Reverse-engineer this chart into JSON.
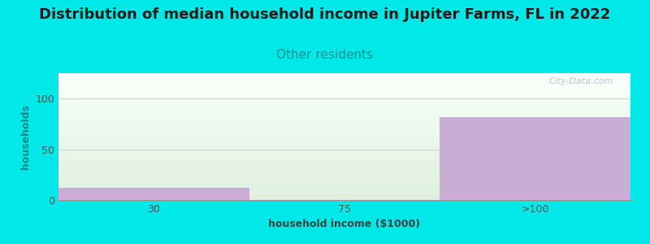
{
  "title": "Distribution of median household income in Jupiter Farms, FL in 2022",
  "subtitle": "Other residents",
  "xlabel": "household income ($1000)",
  "ylabel": "households",
  "categories": [
    "30",
    "75",
    ">100"
  ],
  "values": [
    12,
    0,
    82
  ],
  "bar_color": "#c8aed4",
  "background_color": "#00e8e8",
  "plot_bg_top": "#f8fffa",
  "plot_bg_bottom": "#dff0df",
  "title_color": "#1a1a1a",
  "subtitle_color": "#009090",
  "ylabel_color": "#008888",
  "xlabel_color": "#404040",
  "tick_color": "#505050",
  "grid_color": "#c8d8c8",
  "ylim": [
    0,
    125
  ],
  "yticks": [
    0,
    50,
    100
  ],
  "watermark_text": "City-Data.com",
  "title_fontsize": 13,
  "subtitle_fontsize": 11,
  "axis_label_fontsize": 9,
  "tick_fontsize": 9
}
